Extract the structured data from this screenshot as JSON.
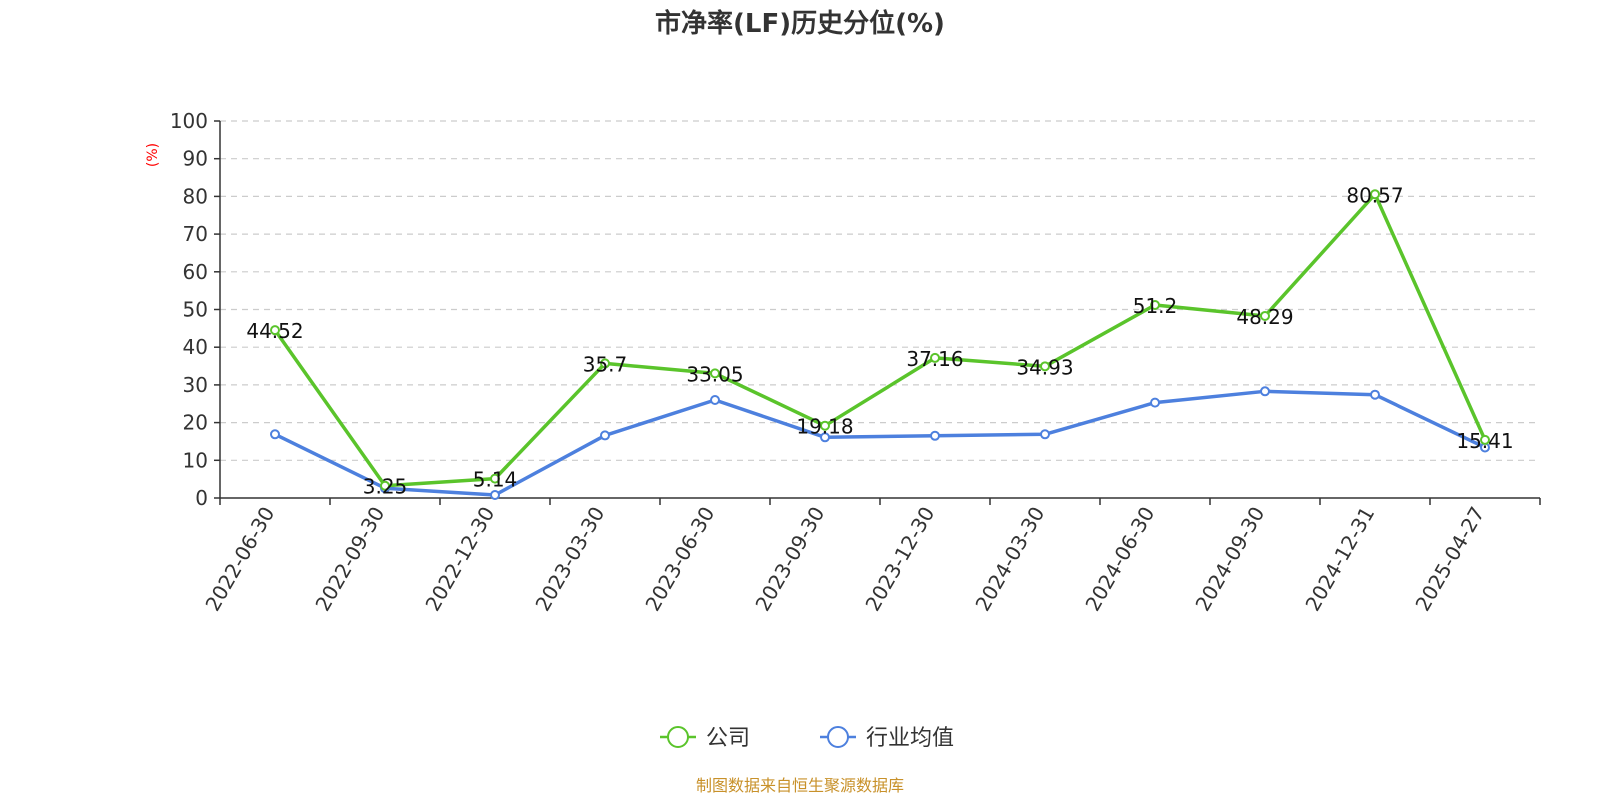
{
  "chart_data": {
    "type": "line",
    "title": "市净率(LF)历史分位(%)",
    "ylabel": "(%)",
    "xlabel": "",
    "ylim": [
      0,
      100
    ],
    "yticks": [
      0,
      10,
      20,
      30,
      40,
      50,
      60,
      70,
      80,
      90,
      100
    ],
    "grid": true,
    "legend_position": "bottom-center",
    "categories": [
      "2022-06-30",
      "2022-09-30",
      "2022-12-30",
      "2023-03-30",
      "2023-06-30",
      "2023-09-30",
      "2023-12-30",
      "2024-03-30",
      "2024-06-30",
      "2024-09-30",
      "2024-12-31",
      "2025-04-27"
    ],
    "series": [
      {
        "name": "公司",
        "color": "#5ac42b",
        "values": [
          44.52,
          3.25,
          5.14,
          35.7,
          33.05,
          19.18,
          37.16,
          34.93,
          51.2,
          48.29,
          80.57,
          15.41
        ],
        "data_labels": [
          "44.52",
          "3.25",
          "5.14",
          "35.7",
          "33.05",
          "19.18",
          "37.16",
          "34.93",
          "51.2",
          "48.29",
          "80.57",
          "15.41"
        ]
      },
      {
        "name": "行业均值",
        "color": "#4d80de",
        "values": [
          16.9,
          2.6,
          0.8,
          16.6,
          26.0,
          16.1,
          16.5,
          16.9,
          25.3,
          28.3,
          27.4,
          13.4
        ]
      }
    ]
  },
  "source_note": "制图数据来自恒生聚源数据库"
}
